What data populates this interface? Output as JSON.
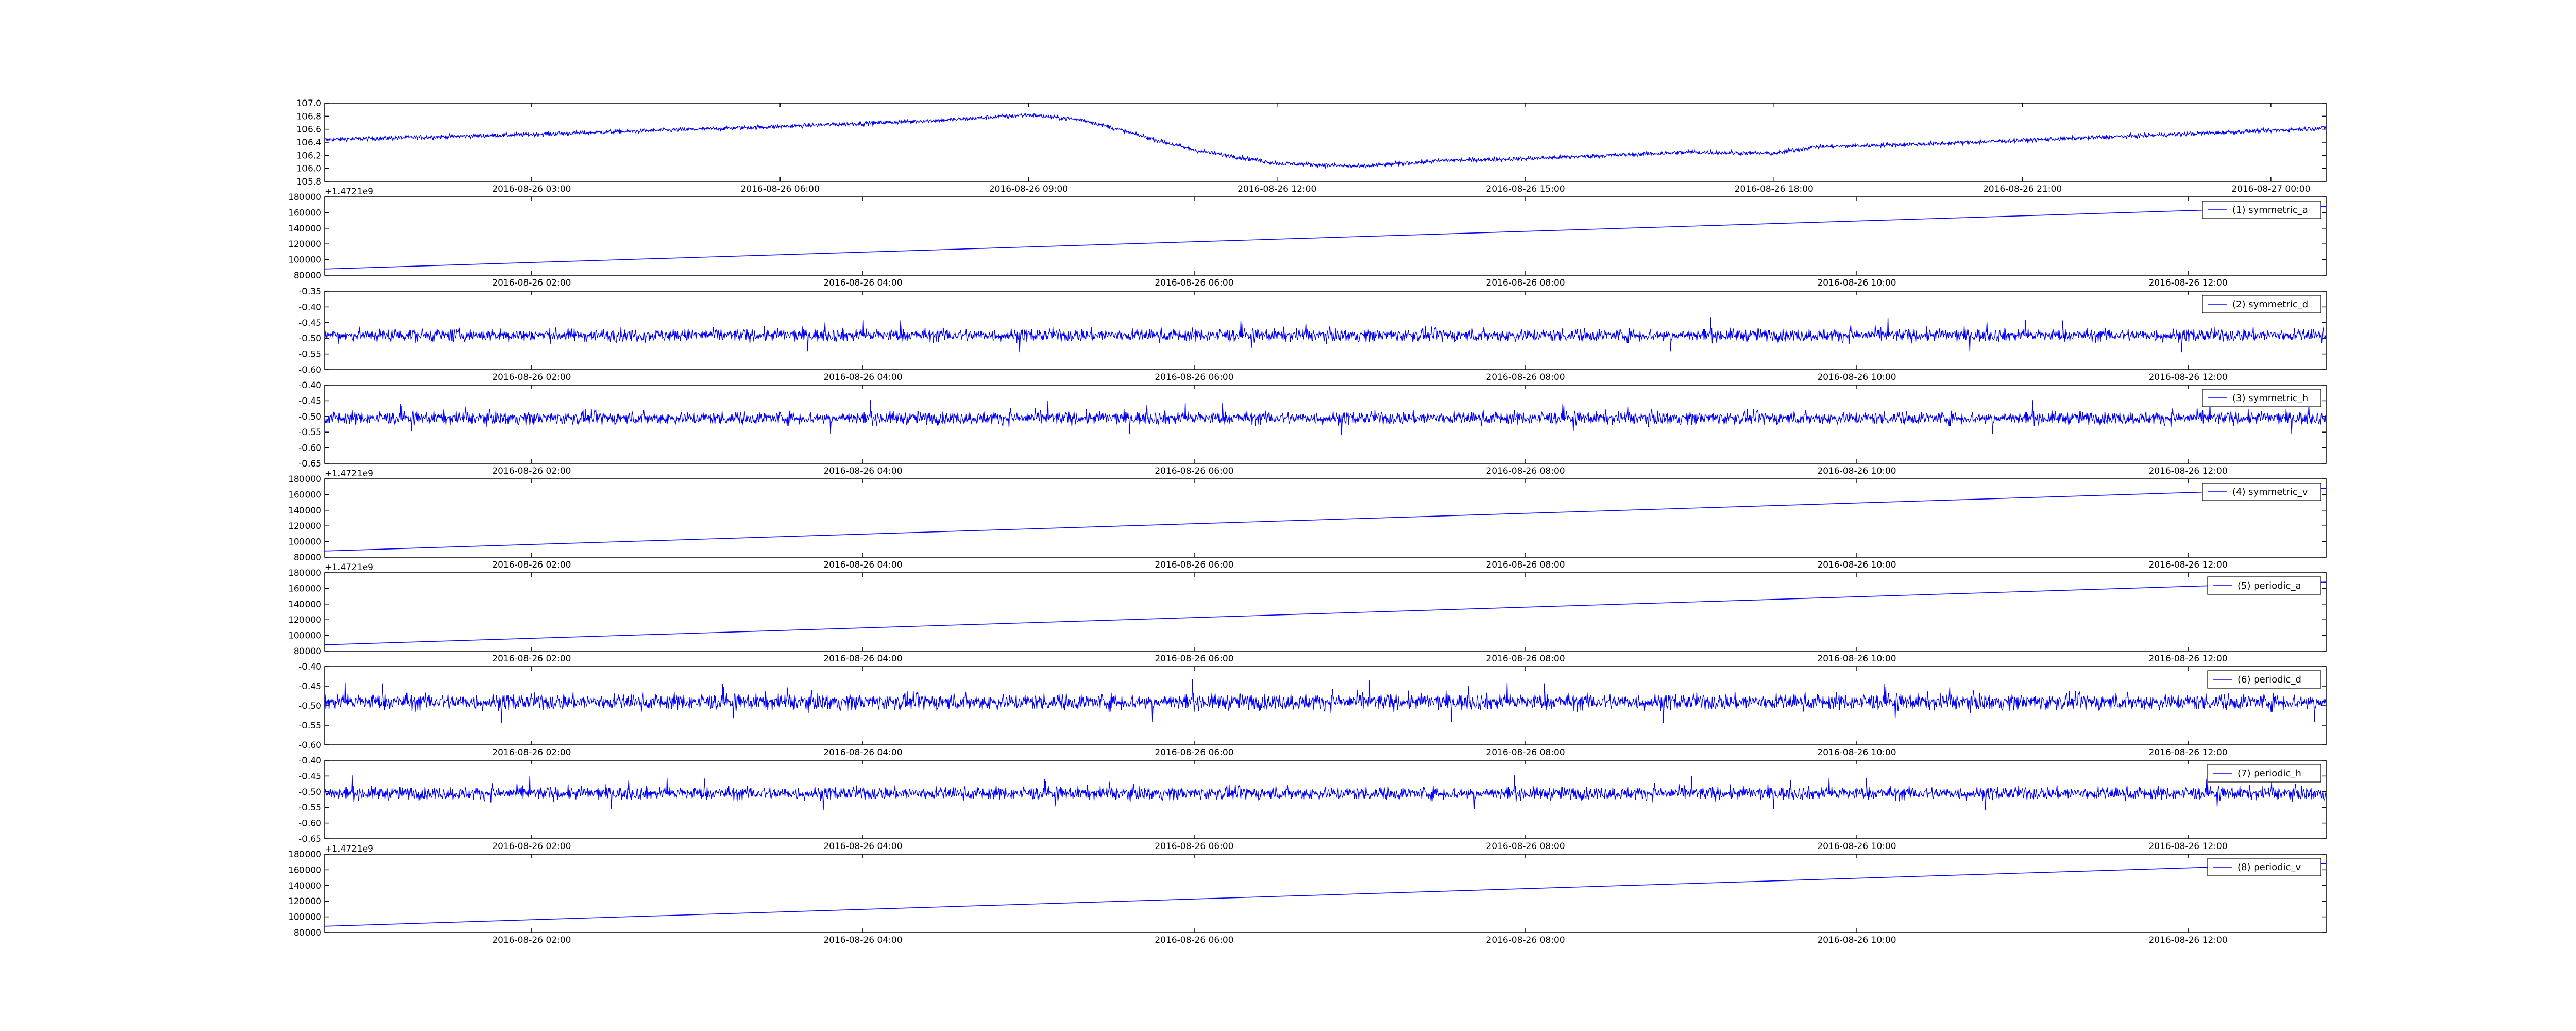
{
  "chart_data": [
    {
      "type": "line",
      "series": [
        {
          "name": "",
          "color": "#0000ff"
        }
      ],
      "ylim": [
        105.8,
        107.0
      ],
      "y_ticks": [
        "105.8",
        "106.0",
        "106.2",
        "106.4",
        "106.6",
        "106.8",
        "107.0"
      ],
      "x_ticks": [
        "2016-08-26 03:00",
        "2016-08-26 06:00",
        "2016-08-26 09:00",
        "2016-08-26 12:00",
        "2016-08-26 15:00",
        "2016-08-26 18:00",
        "2016-08-26 21:00",
        "2016-08-27 00:00"
      ],
      "xlim": [
        "2016-08-26 00:30",
        "2016-08-27 00:40"
      ],
      "trend": [
        {
          "t": "2016-08-26 00:30",
          "y": 106.44
        },
        {
          "t": "2016-08-26 03:00",
          "y": 106.52
        },
        {
          "t": "2016-08-26 06:00",
          "y": 106.64
        },
        {
          "t": "2016-08-26 08:00",
          "y": 106.74
        },
        {
          "t": "2016-08-26 09:00",
          "y": 106.82
        },
        {
          "t": "2016-08-26 09:40",
          "y": 106.74
        },
        {
          "t": "2016-08-26 10:30",
          "y": 106.45
        },
        {
          "t": "2016-08-26 11:00",
          "y": 106.28
        },
        {
          "t": "2016-08-26 12:00",
          "y": 106.08
        },
        {
          "t": "2016-08-26 13:00",
          "y": 106.03
        },
        {
          "t": "2016-08-26 14:00",
          "y": 106.12
        },
        {
          "t": "2016-08-26 15:00",
          "y": 106.15
        },
        {
          "t": "2016-08-26 16:00",
          "y": 106.2
        },
        {
          "t": "2016-08-26 17:00",
          "y": 106.25
        },
        {
          "t": "2016-08-26 18:00",
          "y": 106.23
        },
        {
          "t": "2016-08-26 18:30",
          "y": 106.33
        },
        {
          "t": "2016-08-26 20:00",
          "y": 106.38
        },
        {
          "t": "2016-08-26 22:00",
          "y": 106.48
        },
        {
          "t": "2016-08-27 00:00",
          "y": 106.58
        },
        {
          "t": "2016-08-27 00:40",
          "y": 106.62
        }
      ],
      "noise_amplitude": 0.035
    },
    {
      "type": "line",
      "series": [
        {
          "name": "(1) symmetric_a",
          "color": "#0000ff",
          "start": 88000,
          "end": 168000
        }
      ],
      "ylim": [
        80000,
        180000
      ],
      "y_ticks": [
        "80000",
        "100000",
        "120000",
        "140000",
        "160000",
        "180000"
      ],
      "offset_label": "+1.4721e9",
      "x_ticks": [
        "2016-08-26 02:00",
        "2016-08-26 04:00",
        "2016-08-26 06:00",
        "2016-08-26 08:00",
        "2016-08-26 10:00",
        "2016-08-26 12:00"
      ],
      "xlim": [
        "2016-08-26 00:45",
        "2016-08-26 12:50"
      ],
      "legend": "top-right"
    },
    {
      "type": "line",
      "series": [
        {
          "name": "(2) symmetric_d",
          "color": "#0000ff",
          "center": -0.49
        }
      ],
      "ylim": [
        -0.6,
        -0.35
      ],
      "y_ticks": [
        "-0.60",
        "-0.55",
        "-0.50",
        "-0.45",
        "-0.40",
        "-0.35"
      ],
      "x_ticks": [
        "2016-08-26 02:00",
        "2016-08-26 04:00",
        "2016-08-26 06:00",
        "2016-08-26 08:00",
        "2016-08-26 10:00",
        "2016-08-26 12:00"
      ],
      "xlim": [
        "2016-08-26 00:45",
        "2016-08-26 12:50"
      ],
      "legend": "top-right"
    },
    {
      "type": "line",
      "series": [
        {
          "name": "(3) symmetric_h",
          "color": "#0000ff",
          "center": -0.505
        }
      ],
      "ylim": [
        -0.65,
        -0.4
      ],
      "y_ticks": [
        "-0.65",
        "-0.60",
        "-0.55",
        "-0.50",
        "-0.45",
        "-0.40"
      ],
      "x_ticks": [
        "2016-08-26 02:00",
        "2016-08-26 04:00",
        "2016-08-26 06:00",
        "2016-08-26 08:00",
        "2016-08-26 10:00",
        "2016-08-26 12:00"
      ],
      "xlim": [
        "2016-08-26 00:45",
        "2016-08-26 12:50"
      ],
      "legend": "top-right"
    },
    {
      "type": "line",
      "series": [
        {
          "name": "(4) symmetric_v",
          "color": "#0000ff",
          "start": 88000,
          "end": 168000
        }
      ],
      "ylim": [
        80000,
        180000
      ],
      "y_ticks": [
        "80000",
        "100000",
        "120000",
        "140000",
        "160000",
        "180000"
      ],
      "offset_label": "+1.4721e9",
      "x_ticks": [
        "2016-08-26 02:00",
        "2016-08-26 04:00",
        "2016-08-26 06:00",
        "2016-08-26 08:00",
        "2016-08-26 10:00",
        "2016-08-26 12:00"
      ],
      "xlim": [
        "2016-08-26 00:45",
        "2016-08-26 12:50"
      ],
      "legend": "top-right"
    },
    {
      "type": "line",
      "series": [
        {
          "name": "(5) periodic_a",
          "color": "#0000ff",
          "start": 88000,
          "end": 168000
        }
      ],
      "ylim": [
        80000,
        180000
      ],
      "y_ticks": [
        "80000",
        "100000",
        "120000",
        "140000",
        "160000",
        "180000"
      ],
      "offset_label": "+1.4721e9",
      "x_ticks": [
        "2016-08-26 02:00",
        "2016-08-26 04:00",
        "2016-08-26 06:00",
        "2016-08-26 08:00",
        "2016-08-26 10:00",
        "2016-08-26 12:00"
      ],
      "xlim": [
        "2016-08-26 00:45",
        "2016-08-26 12:50"
      ],
      "legend": "top-right"
    },
    {
      "type": "line",
      "series": [
        {
          "name": "(6) periodic_d",
          "color": "#0000ff",
          "center": -0.49
        }
      ],
      "ylim": [
        -0.6,
        -0.4
      ],
      "y_ticks": [
        "-0.60",
        "-0.55",
        "-0.50",
        "-0.45",
        "-0.40"
      ],
      "x_ticks": [
        "2016-08-26 02:00",
        "2016-08-26 04:00",
        "2016-08-26 06:00",
        "2016-08-26 08:00",
        "2016-08-26 10:00",
        "2016-08-26 12:00"
      ],
      "xlim": [
        "2016-08-26 00:45",
        "2016-08-26 12:50"
      ],
      "legend": "top-right"
    },
    {
      "type": "line",
      "series": [
        {
          "name": "(7) periodic_h",
          "color": "#0000ff",
          "center": -0.505
        }
      ],
      "ylim": [
        -0.65,
        -0.4
      ],
      "y_ticks": [
        "-0.65",
        "-0.60",
        "-0.55",
        "-0.50",
        "-0.45",
        "-0.40"
      ],
      "x_ticks": [
        "2016-08-26 02:00",
        "2016-08-26 04:00",
        "2016-08-26 06:00",
        "2016-08-26 08:00",
        "2016-08-26 10:00",
        "2016-08-26 12:00"
      ],
      "xlim": [
        "2016-08-26 00:45",
        "2016-08-26 12:50"
      ],
      "legend": "top-right"
    },
    {
      "type": "line",
      "series": [
        {
          "name": "(8) periodic_v",
          "color": "#0000ff",
          "start": 88000,
          "end": 168000
        }
      ],
      "ylim": [
        80000,
        180000
      ],
      "y_ticks": [
        "80000",
        "100000",
        "120000",
        "140000",
        "160000",
        "180000"
      ],
      "offset_label": "+1.4721e9",
      "x_ticks": [
        "2016-08-26 02:00",
        "2016-08-26 04:00",
        "2016-08-26 06:00",
        "2016-08-26 08:00",
        "2016-08-26 10:00",
        "2016-08-26 12:00"
      ],
      "xlim": [
        "2016-08-26 00:45",
        "2016-08-26 12:50"
      ],
      "legend": "top-right"
    }
  ]
}
